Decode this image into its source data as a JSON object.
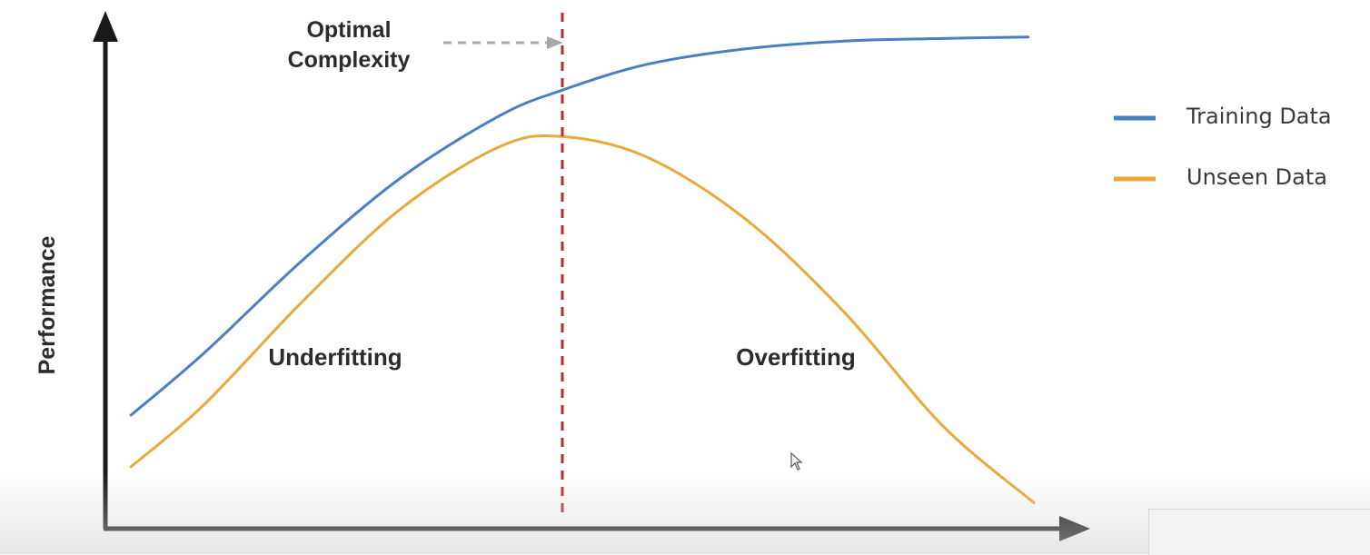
{
  "chart_data": {
    "type": "line",
    "xlabel": "",
    "ylabel": "Performance",
    "x_range": [
      0,
      100
    ],
    "y_range": [
      0,
      100
    ],
    "grid": false,
    "legend_position": "right",
    "optimal_x": 46.4,
    "series": [
      {
        "name": "Training Data",
        "color": "#4a7fc4",
        "x": [
          2.6,
          10,
          20,
          30,
          40,
          46.4,
          55,
          65,
          75,
          85,
          93.7
        ],
        "y": [
          22,
          34,
          52,
          68,
          80,
          85,
          90,
          93,
          94.5,
          95,
          95.3
        ]
      },
      {
        "name": "Unseen Data",
        "color": "#e8a93a",
        "x": [
          2.6,
          10,
          20,
          30,
          40,
          46.4,
          55,
          65,
          75,
          85,
          94.3
        ],
        "y": [
          12,
          24,
          44,
          62,
          74,
          76,
          72,
          60,
          42,
          20,
          5
        ]
      }
    ],
    "annotations": {
      "optimal_line1": "Optimal",
      "optimal_line2": "Complexity",
      "left_region": "Underfitting",
      "right_region": "Overfitting"
    },
    "colors": {
      "axis": "#1a1a1a",
      "optimal_line": "#c0272d",
      "arrow": "#a8a8a8"
    }
  }
}
